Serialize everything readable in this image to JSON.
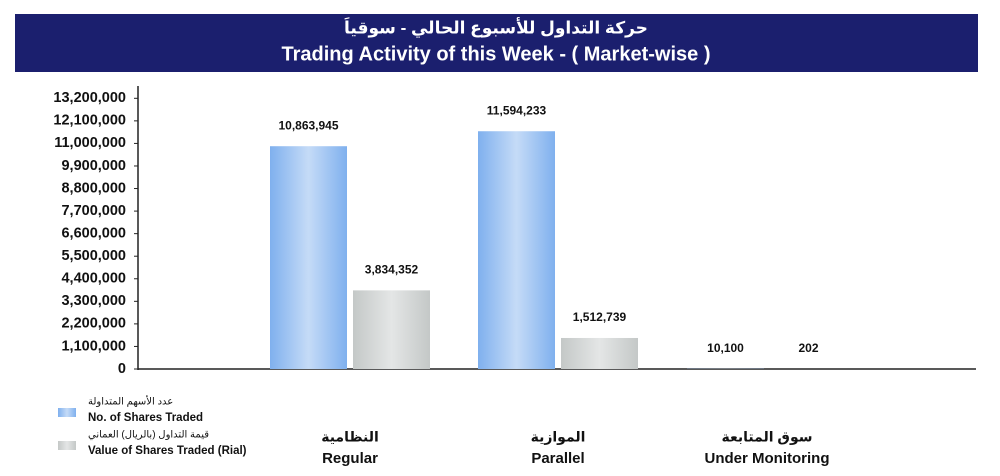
{
  "chart_data": {
    "type": "bar",
    "title": [
      "حركة التداول للأسبوع الحالي - سوقياَ",
      "Trading Activity of this Week - ( Market-wise )"
    ],
    "categories": [
      [
        "النظامية",
        "Regular"
      ],
      [
        "الموازية",
        "Parallel"
      ],
      [
        "سوق المتابعة",
        "Under Monitoring"
      ]
    ],
    "series": [
      {
        "name": [
          "عدد الأسهم المتداولة",
          "No. of Shares Traded"
        ],
        "color": "#7fb0ee",
        "values": [
          10863945,
          11594233,
          10100
        ],
        "value_labels": [
          "10,863,945",
          "11,594,233",
          "10,100"
        ]
      },
      {
        "name": [
          "قيمة التداول (بالريال) العماني",
          "Value of Shares Traded (Rial)"
        ],
        "color": "#c4c8c7",
        "values": [
          3834352,
          1512739,
          202
        ],
        "value_labels": [
          "3,834,352",
          "1,512,739",
          "202"
        ]
      }
    ],
    "ylim": [
      0,
      13800000
    ],
    "yticks": [
      {
        "value": 0,
        "label": "0"
      },
      {
        "value": 1100000,
        "label": "1,100,000"
      },
      {
        "value": 2200000,
        "label": "2,200,000"
      },
      {
        "value": 3300000,
        "label": "3,300,000"
      },
      {
        "value": 4400000,
        "label": "4,400,000"
      },
      {
        "value": 5500000,
        "label": "5,500,000"
      },
      {
        "value": 6600000,
        "label": "6,600,000"
      },
      {
        "value": 7700000,
        "label": "7,700,000"
      },
      {
        "value": 8800000,
        "label": "8,800,000"
      },
      {
        "value": 9900000,
        "label": "9,900,000"
      },
      {
        "value": 11000000,
        "label": "11,000,000"
      },
      {
        "value": 12100000,
        "label": "12,100,000"
      },
      {
        "value": 13200000,
        "label": "13,200,000"
      }
    ],
    "header_color": "#1b1f6e"
  }
}
